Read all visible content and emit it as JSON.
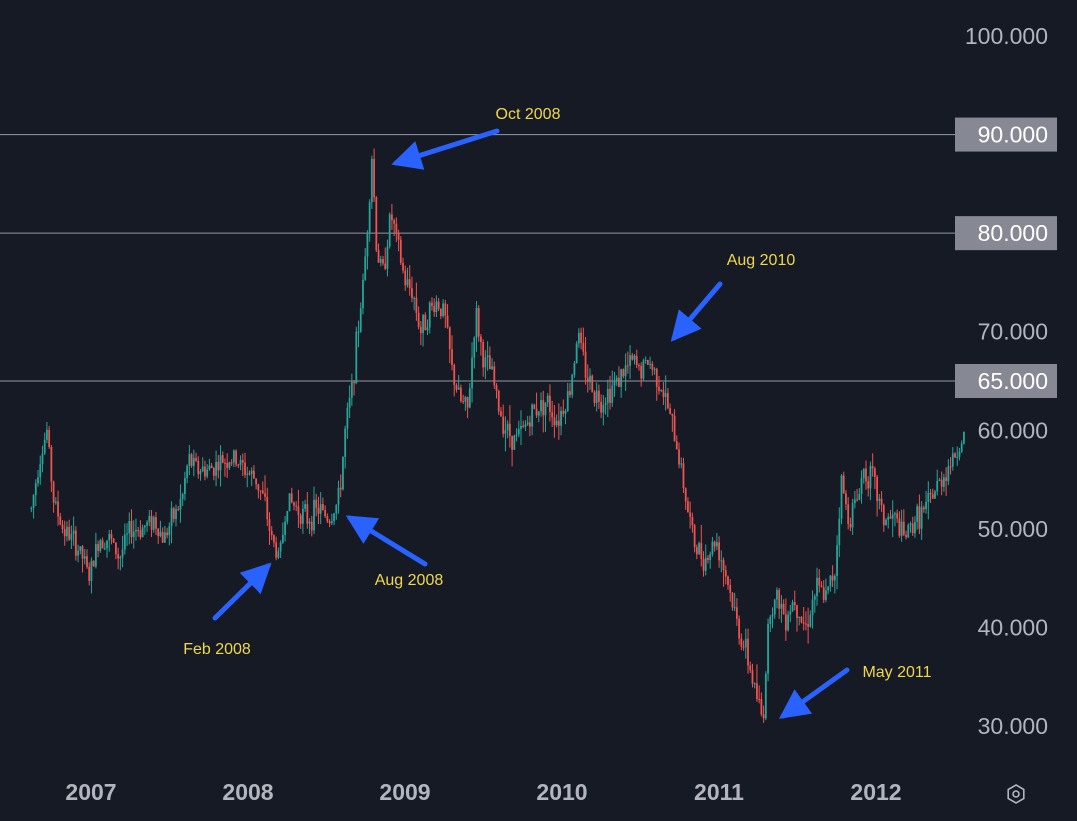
{
  "chart_data": {
    "type": "candlestick",
    "title": "",
    "xlabel": "",
    "ylabel": "",
    "ylim": [
      25,
      102
    ],
    "x_range": [
      2006.62,
      2012.65
    ],
    "y_ticks": [
      "100.000",
      "90.000",
      "80.000",
      "70.000",
      "65.000",
      "60.000",
      "50.000",
      "40.000",
      "30.000"
    ],
    "x_ticks": [
      {
        "label": "2007",
        "x": 2007.0
      },
      {
        "label": "2008",
        "x": 2008.0
      },
      {
        "label": "2009",
        "x": 2009.0
      },
      {
        "label": "2010",
        "x": 2010.0
      },
      {
        "label": "2011",
        "x": 2011.0
      },
      {
        "label": "2012",
        "x": 2012.0
      }
    ],
    "horizontal_levels": [
      {
        "value": 90,
        "label": "90.000"
      },
      {
        "value": 80,
        "label": "80.000"
      },
      {
        "value": 65,
        "label": "65.000"
      }
    ],
    "annotations": [
      {
        "text": "Oct 2008",
        "x": 2008.8,
        "y": 88
      },
      {
        "text": "Feb 2008",
        "x": 2008.2,
        "y": 47
      },
      {
        "text": "Aug 2008",
        "x": 2008.6,
        "y": 51
      },
      {
        "text": "Aug 2010",
        "x": 2010.6,
        "y": 68
      },
      {
        "text": "May 2011",
        "x": 2011.3,
        "y": 30.5
      }
    ],
    "price_path": [
      [
        2006.62,
        52
      ],
      [
        2006.67,
        57
      ],
      [
        2006.72,
        60
      ],
      [
        2006.76,
        53
      ],
      [
        2006.82,
        50
      ],
      [
        2006.88,
        49
      ],
      [
        2006.95,
        47
      ],
      [
        2006.99,
        45
      ],
      [
        2007.05,
        49
      ],
      [
        2007.12,
        49
      ],
      [
        2007.18,
        47
      ],
      [
        2007.25,
        50
      ],
      [
        2007.32,
        50
      ],
      [
        2007.4,
        51
      ],
      [
        2007.46,
        49
      ],
      [
        2007.52,
        51
      ],
      [
        2007.58,
        53
      ],
      [
        2007.62,
        57
      ],
      [
        2007.68,
        56
      ],
      [
        2007.75,
        56
      ],
      [
        2007.85,
        57
      ],
      [
        2007.92,
        57
      ],
      [
        2007.98,
        56
      ],
      [
        2008.05,
        55
      ],
      [
        2008.1,
        53
      ],
      [
        2008.15,
        49
      ],
      [
        2008.2,
        47
      ],
      [
        2008.25,
        53
      ],
      [
        2008.32,
        52
      ],
      [
        2008.38,
        51
      ],
      [
        2008.45,
        52
      ],
      [
        2008.52,
        51
      ],
      [
        2008.58,
        53
      ],
      [
        2008.62,
        60
      ],
      [
        2008.66,
        64
      ],
      [
        2008.7,
        70
      ],
      [
        2008.74,
        76
      ],
      [
        2008.79,
        88
      ],
      [
        2008.82,
        78
      ],
      [
        2008.86,
        76
      ],
      [
        2008.91,
        82
      ],
      [
        2008.95,
        79
      ],
      [
        2009.0,
        75
      ],
      [
        2009.05,
        74
      ],
      [
        2009.1,
        70
      ],
      [
        2009.15,
        72
      ],
      [
        2009.2,
        73
      ],
      [
        2009.25,
        72
      ],
      [
        2009.3,
        66
      ],
      [
        2009.35,
        63
      ],
      [
        2009.4,
        62
      ],
      [
        2009.45,
        72
      ],
      [
        2009.5,
        67
      ],
      [
        2009.55,
        66
      ],
      [
        2009.6,
        62
      ],
      [
        2009.65,
        60
      ],
      [
        2009.7,
        59
      ],
      [
        2009.75,
        60
      ],
      [
        2009.82,
        62
      ],
      [
        2009.9,
        63
      ],
      [
        2009.97,
        61
      ],
      [
        2010.05,
        64
      ],
      [
        2010.1,
        70
      ],
      [
        2010.15,
        66
      ],
      [
        2010.2,
        64
      ],
      [
        2010.25,
        63
      ],
      [
        2010.3,
        64
      ],
      [
        2010.35,
        65
      ],
      [
        2010.4,
        66
      ],
      [
        2010.45,
        67
      ],
      [
        2010.5,
        66
      ],
      [
        2010.55,
        67
      ],
      [
        2010.62,
        65
      ],
      [
        2010.68,
        62
      ],
      [
        2010.75,
        57
      ],
      [
        2010.8,
        52
      ],
      [
        2010.85,
        48
      ],
      [
        2010.92,
        47
      ],
      [
        2010.98,
        49
      ],
      [
        2011.05,
        45
      ],
      [
        2011.12,
        40
      ],
      [
        2011.18,
        37
      ],
      [
        2011.24,
        33
      ],
      [
        2011.28,
        30.5
      ],
      [
        2011.32,
        42
      ],
      [
        2011.38,
        43
      ],
      [
        2011.42,
        41
      ],
      [
        2011.48,
        43
      ],
      [
        2011.55,
        40
      ],
      [
        2011.62,
        44
      ],
      [
        2011.68,
        43
      ],
      [
        2011.74,
        46
      ],
      [
        2011.78,
        55
      ],
      [
        2011.82,
        51
      ],
      [
        2011.88,
        53
      ],
      [
        2011.92,
        56
      ],
      [
        2011.98,
        55
      ],
      [
        2012.05,
        51
      ],
      [
        2012.12,
        51
      ],
      [
        2012.18,
        49
      ],
      [
        2012.25,
        51
      ],
      [
        2012.32,
        52
      ],
      [
        2012.38,
        54
      ],
      [
        2012.45,
        56
      ],
      [
        2012.52,
        58
      ],
      [
        2012.56,
        59.5
      ]
    ]
  },
  "colors": {
    "background": "#161a25",
    "bull": "#26a69a",
    "bear": "#ef5350",
    "level_line": "#9598a1",
    "level_tag_bg": "#868993",
    "arrow": "#2962ff",
    "annotation_text": "#f0d84a",
    "axis_text": "#b2b5be"
  },
  "icons": {
    "settings": "settings-gear-icon"
  }
}
